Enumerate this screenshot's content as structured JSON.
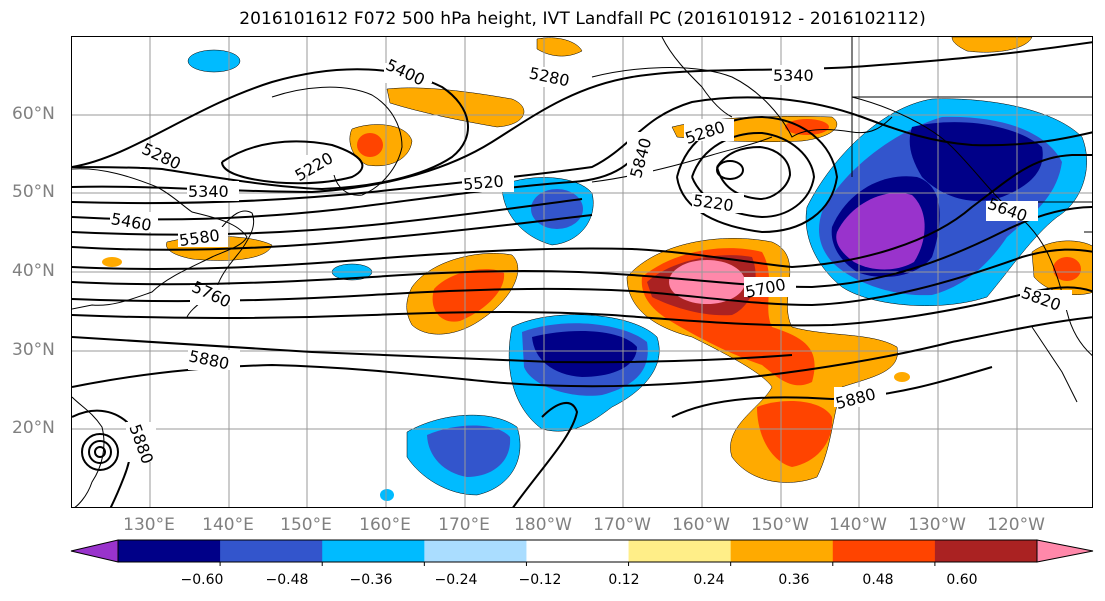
{
  "title": "2016101612 F072 500 hPa height, IVT Landfall PC (2016101912 - 2016102112)",
  "lat_labels": [
    "60°N",
    "50°N",
    "40°N",
    "30°N",
    "20°N"
  ],
  "lon_labels": [
    "130°E",
    "140°E",
    "150°E",
    "160°E",
    "170°E",
    "180°W",
    "170°W",
    "160°W",
    "150°W",
    "140°W",
    "130°W",
    "120°W"
  ],
  "contour_labels": [
    "5400",
    "5280",
    "5340",
    "5280",
    "5220",
    "5340",
    "5460",
    "5580",
    "5760",
    "5880",
    "5880",
    "5520",
    "5840",
    "5280",
    "5220",
    "5700",
    "5640",
    "5820",
    "5880"
  ],
  "colorbar": {
    "colors": [
      "#9933cc",
      "#000088",
      "#3355cc",
      "#00bbff",
      "#aaddff",
      "#ffffff",
      "#ffee88",
      "#ffaa00",
      "#ff4400",
      "#aa2222",
      "#ff88aa"
    ],
    "tick_labels": [
      "−0.60",
      "−0.48",
      "−0.36",
      "−0.24",
      "−0.12",
      "0.12",
      "0.24",
      "0.36",
      "0.48",
      "0.60"
    ]
  }
}
